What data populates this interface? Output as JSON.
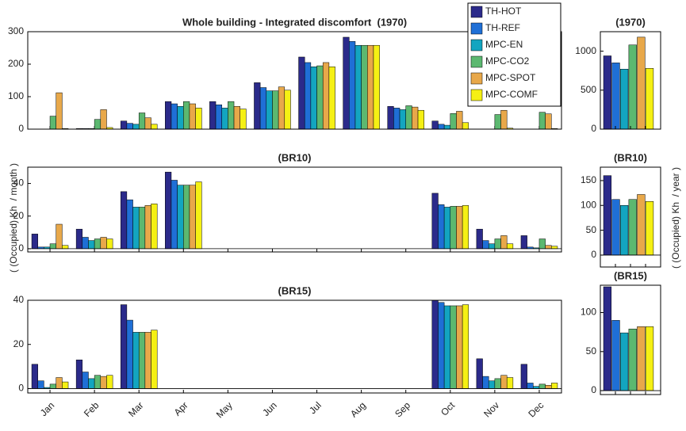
{
  "chart_data": [
    {
      "type": "bar",
      "title": "Whole building - Integrated discomfort  (1970)",
      "ylim": [
        0,
        300
      ],
      "yticks": [
        0,
        100,
        200,
        300
      ],
      "legend": "top-right",
      "series": [
        {
          "name": "TH-HOT",
          "color": "#2b2a8a",
          "values": [
            0,
            2,
            25,
            85,
            85,
            143,
            222,
            283,
            70,
            25,
            0,
            0
          ]
        },
        {
          "name": "TH-REF",
          "color": "#1f6fd6",
          "values": [
            0,
            2,
            18,
            78,
            75,
            128,
            205,
            270,
            65,
            15,
            0,
            0
          ]
        },
        {
          "name": "MPC-EN",
          "color": "#13a5c0",
          "values": [
            0,
            2,
            15,
            70,
            65,
            118,
            192,
            258,
            60,
            12,
            0,
            0
          ]
        },
        {
          "name": "MPC-CO2",
          "color": "#5cb870",
          "values": [
            40,
            30,
            50,
            85,
            85,
            118,
            195,
            258,
            72,
            48,
            45,
            52
          ]
        },
        {
          "name": "MPC-SPOT",
          "color": "#e8a84a",
          "values": [
            112,
            60,
            35,
            78,
            70,
            130,
            205,
            258,
            68,
            55,
            58,
            47
          ]
        },
        {
          "name": "MPC-COMF",
          "color": "#f5f014",
          "values": [
            2,
            5,
            15,
            65,
            62,
            120,
            192,
            258,
            58,
            20,
            3,
            2
          ]
        }
      ]
    },
    {
      "type": "bar",
      "title": "(BR10)",
      "ylim": [
        -2,
        50
      ],
      "yticks": [
        0,
        20,
        40
      ],
      "ylabel": "( (Occupied) Kh  / month )",
      "series": [
        {
          "values": [
            9,
            12,
            35,
            47,
            0,
            0,
            0,
            0,
            0,
            34,
            12,
            8
          ]
        },
        {
          "values": [
            1,
            7,
            30,
            42,
            0,
            0,
            0,
            0,
            0,
            27,
            5,
            1
          ]
        },
        {
          "values": [
            1,
            5,
            25.5,
            39,
            0,
            0,
            0,
            0,
            0,
            25.5,
            3,
            0.5
          ]
        },
        {
          "values": [
            3,
            6,
            25.5,
            39,
            0,
            0,
            0,
            0,
            0,
            26,
            6,
            6
          ]
        },
        {
          "values": [
            15,
            7,
            26.5,
            39,
            0,
            0,
            0,
            0,
            0,
            26,
            8,
            2
          ]
        },
        {
          "values": [
            2,
            6,
            27.5,
            41,
            0,
            0,
            0,
            0,
            0,
            26.5,
            3,
            1.5
          ]
        }
      ]
    },
    {
      "type": "bar",
      "title": "(BR15)",
      "ylim": [
        -2,
        40
      ],
      "yticks": [
        0,
        20,
        40
      ],
      "categories": [
        "Jan",
        "Feb",
        "Mar",
        "Apr",
        "May",
        "Jun",
        "Jul",
        "Aug",
        "Sep",
        "Oct",
        "Nov",
        "Dec"
      ],
      "series": [
        {
          "values": [
            11,
            13,
            38,
            0,
            0,
            0,
            0,
            0,
            0,
            40,
            13.5,
            11
          ]
        },
        {
          "values": [
            3.5,
            7.5,
            31,
            0,
            0,
            0,
            0,
            0,
            0,
            39,
            5.5,
            2.5
          ]
        },
        {
          "values": [
            0.5,
            4.5,
            25.5,
            0,
            0,
            0,
            0,
            0,
            0,
            37.5,
            3.5,
            1
          ]
        },
        {
          "values": [
            2,
            6,
            25.5,
            0,
            0,
            0,
            0,
            0,
            0,
            37.5,
            4.5,
            2
          ]
        },
        {
          "values": [
            5,
            5.5,
            25.5,
            0,
            0,
            0,
            0,
            0,
            0,
            37.5,
            6,
            1.5
          ]
        },
        {
          "values": [
            3,
            6,
            26.5,
            0,
            0,
            0,
            0,
            0,
            0,
            38,
            5,
            2.5
          ]
        }
      ]
    },
    {
      "type": "bar",
      "title": "(1970)",
      "ylim": [
        0,
        1250
      ],
      "yticks": [
        0,
        500,
        1000
      ],
      "values": [
        940,
        850,
        770,
        1080,
        1180,
        780
      ]
    },
    {
      "type": "bar",
      "title": "(BR10)",
      "ylim": [
        -24,
        177
      ],
      "yticks": [
        0,
        50,
        100,
        150
      ],
      "ylabel": "( (Occupied) Kh  / year )",
      "values": [
        160,
        112,
        100,
        112,
        122,
        108
      ]
    },
    {
      "type": "bar",
      "title": "(BR15)",
      "ylim": [
        -5,
        135
      ],
      "yticks": [
        0,
        50,
        100
      ],
      "values": [
        133,
        90,
        74,
        79,
        82,
        82
      ]
    }
  ]
}
